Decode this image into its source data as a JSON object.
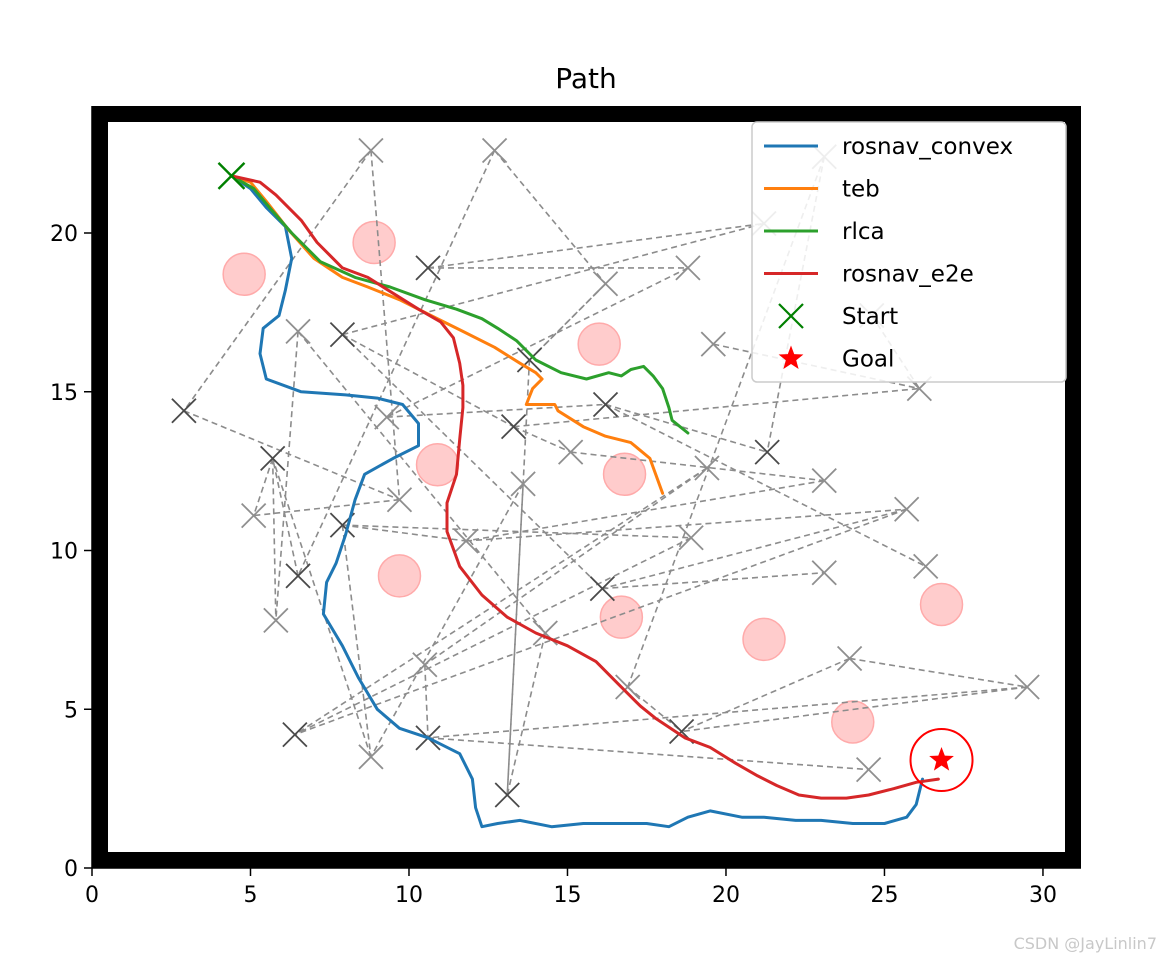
{
  "chart_data": {
    "type": "line",
    "title": "Path",
    "xlabel": "",
    "ylabel": "",
    "xlim": [
      0,
      31.2
    ],
    "ylim": [
      0,
      24
    ],
    "xticks": [
      0,
      5,
      10,
      15,
      20,
      25,
      30
    ],
    "yticks": [
      0,
      5,
      10,
      15,
      20
    ],
    "grid": false,
    "legend_position": "top-right",
    "series": [
      {
        "name": "rosnav_convex",
        "color": "#1f77b4",
        "points": [
          [
            4.4,
            21.8
          ],
          [
            5.0,
            21.4
          ],
          [
            5.5,
            20.8
          ],
          [
            6.1,
            20.2
          ],
          [
            6.3,
            19.2
          ],
          [
            6.1,
            18.2
          ],
          [
            5.9,
            17.4
          ],
          [
            5.4,
            17.0
          ],
          [
            5.3,
            16.2
          ],
          [
            5.5,
            15.4
          ],
          [
            6.6,
            15.0
          ],
          [
            8.0,
            14.9
          ],
          [
            9.0,
            14.8
          ],
          [
            9.8,
            14.6
          ],
          [
            10.3,
            14.0
          ],
          [
            10.3,
            13.3
          ],
          [
            9.5,
            12.9
          ],
          [
            8.6,
            12.4
          ],
          [
            8.3,
            11.6
          ],
          [
            8.0,
            10.5
          ],
          [
            7.7,
            9.6
          ],
          [
            7.4,
            9.0
          ],
          [
            7.3,
            8.0
          ],
          [
            7.9,
            7.0
          ],
          [
            8.4,
            6.0
          ],
          [
            9.0,
            5.0
          ],
          [
            9.7,
            4.4
          ],
          [
            10.6,
            4.1
          ],
          [
            11.6,
            3.6
          ],
          [
            12.0,
            2.8
          ],
          [
            12.1,
            1.9
          ],
          [
            12.3,
            1.3
          ],
          [
            12.8,
            1.4
          ],
          [
            13.5,
            1.5
          ],
          [
            14.5,
            1.3
          ],
          [
            15.5,
            1.4
          ],
          [
            16.5,
            1.4
          ],
          [
            17.5,
            1.4
          ],
          [
            18.2,
            1.3
          ],
          [
            18.8,
            1.6
          ],
          [
            19.5,
            1.8
          ],
          [
            20.5,
            1.6
          ],
          [
            21.2,
            1.6
          ],
          [
            22.2,
            1.5
          ],
          [
            23.0,
            1.5
          ],
          [
            24.0,
            1.4
          ],
          [
            25.0,
            1.4
          ],
          [
            25.7,
            1.6
          ],
          [
            26.0,
            2.0
          ],
          [
            26.2,
            2.8
          ]
        ]
      },
      {
        "name": "teb",
        "color": "#ff7f0e",
        "points": [
          [
            4.4,
            21.8
          ],
          [
            5.0,
            21.6
          ],
          [
            5.5,
            21.0
          ],
          [
            6.2,
            20.1
          ],
          [
            7.0,
            19.2
          ],
          [
            7.9,
            18.6
          ],
          [
            8.7,
            18.3
          ],
          [
            9.7,
            17.9
          ],
          [
            10.7,
            17.4
          ],
          [
            11.7,
            16.9
          ],
          [
            12.7,
            16.4
          ],
          [
            13.5,
            15.9
          ],
          [
            14.0,
            15.6
          ],
          [
            14.2,
            15.4
          ],
          [
            13.9,
            15.1
          ],
          [
            13.7,
            14.6
          ],
          [
            14.3,
            14.6
          ],
          [
            14.6,
            14.6
          ],
          [
            14.7,
            14.4
          ],
          [
            15.5,
            13.9
          ],
          [
            16.2,
            13.6
          ],
          [
            17.0,
            13.4
          ],
          [
            17.6,
            12.9
          ],
          [
            18.0,
            11.8
          ]
        ]
      },
      {
        "name": "rlca",
        "color": "#2ca02c",
        "points": [
          [
            4.4,
            21.8
          ],
          [
            5.1,
            21.4
          ],
          [
            5.6,
            20.8
          ],
          [
            6.3,
            20.0
          ],
          [
            7.2,
            19.1
          ],
          [
            8.3,
            18.6
          ],
          [
            9.4,
            18.3
          ],
          [
            10.5,
            17.9
          ],
          [
            11.5,
            17.6
          ],
          [
            12.3,
            17.3
          ],
          [
            12.8,
            17.0
          ],
          [
            13.4,
            16.6
          ],
          [
            14.0,
            16.0
          ],
          [
            14.8,
            15.6
          ],
          [
            15.6,
            15.4
          ],
          [
            16.3,
            15.6
          ],
          [
            16.7,
            15.5
          ],
          [
            17.0,
            15.7
          ],
          [
            17.4,
            15.8
          ],
          [
            17.7,
            15.5
          ],
          [
            18.0,
            15.1
          ],
          [
            18.2,
            14.5
          ],
          [
            18.3,
            14.1
          ],
          [
            18.8,
            13.7
          ]
        ]
      },
      {
        "name": "rosnav_e2e",
        "color": "#d62728",
        "points": [
          [
            4.4,
            21.8
          ],
          [
            5.3,
            21.6
          ],
          [
            5.8,
            21.2
          ],
          [
            6.6,
            20.4
          ],
          [
            7.1,
            19.7
          ],
          [
            7.9,
            18.9
          ],
          [
            8.7,
            18.6
          ],
          [
            9.5,
            18.1
          ],
          [
            10.3,
            17.6
          ],
          [
            11.0,
            17.2
          ],
          [
            11.4,
            16.7
          ],
          [
            11.6,
            15.9
          ],
          [
            11.7,
            15.2
          ],
          [
            11.7,
            14.5
          ],
          [
            11.6,
            13.5
          ],
          [
            11.5,
            12.4
          ],
          [
            11.2,
            11.5
          ],
          [
            11.2,
            10.6
          ],
          [
            11.6,
            9.5
          ],
          [
            12.3,
            8.6
          ],
          [
            13.1,
            7.9
          ],
          [
            14.0,
            7.4
          ],
          [
            15.0,
            7.0
          ],
          [
            15.9,
            6.5
          ],
          [
            16.6,
            5.8
          ],
          [
            17.3,
            5.1
          ],
          [
            17.8,
            4.7
          ],
          [
            18.7,
            4.1
          ],
          [
            19.5,
            3.8
          ],
          [
            20.3,
            3.3
          ],
          [
            21.0,
            2.9
          ],
          [
            21.6,
            2.6
          ],
          [
            22.3,
            2.3
          ],
          [
            23.0,
            2.2
          ],
          [
            23.8,
            2.2
          ],
          [
            24.5,
            2.3
          ],
          [
            25.3,
            2.5
          ],
          [
            26.0,
            2.7
          ],
          [
            26.7,
            2.8
          ]
        ]
      }
    ],
    "start": {
      "name": "Start",
      "color": "#008000",
      "x": 4.4,
      "y": 21.8
    },
    "goal": {
      "name": "Goal",
      "color": "#ff0000",
      "x": 26.8,
      "y": 3.4
    },
    "obstacles": [
      [
        4.8,
        18.7
      ],
      [
        8.9,
        19.7
      ],
      [
        16.0,
        16.5
      ],
      [
        10.9,
        12.7
      ],
      [
        16.8,
        12.4
      ],
      [
        9.7,
        9.2
      ],
      [
        16.7,
        7.9
      ],
      [
        21.2,
        7.2
      ],
      [
        26.8,
        8.3
      ],
      [
        24.0,
        4.6
      ]
    ],
    "waypoints": [
      {
        "x": 8.8,
        "y": 22.6,
        "shade": "light"
      },
      {
        "x": 12.7,
        "y": 22.6,
        "shade": "light"
      },
      {
        "x": 10.6,
        "y": 18.9,
        "shade": "dark"
      },
      {
        "x": 16.2,
        "y": 18.4,
        "shade": "light"
      },
      {
        "x": 18.8,
        "y": 18.9,
        "shade": "light"
      },
      {
        "x": 21.2,
        "y": 20.3,
        "shade": "light"
      },
      {
        "x": 23.1,
        "y": 22.4,
        "shade": "light"
      },
      {
        "x": 24.6,
        "y": 17.4,
        "shade": "light"
      },
      {
        "x": 6.5,
        "y": 16.9,
        "shade": "light"
      },
      {
        "x": 7.9,
        "y": 16.8,
        "shade": "dark"
      },
      {
        "x": 13.8,
        "y": 16.0,
        "shade": "dark"
      },
      {
        "x": 19.6,
        "y": 16.5,
        "shade": "light"
      },
      {
        "x": 2.9,
        "y": 14.4,
        "shade": "dark"
      },
      {
        "x": 9.3,
        "y": 14.2,
        "shade": "light"
      },
      {
        "x": 13.3,
        "y": 13.9,
        "shade": "dark"
      },
      {
        "x": 16.2,
        "y": 14.6,
        "shade": "dark"
      },
      {
        "x": 26.1,
        "y": 15.1,
        "shade": "light"
      },
      {
        "x": 15.1,
        "y": 13.1,
        "shade": "light"
      },
      {
        "x": 21.3,
        "y": 13.1,
        "shade": "dark"
      },
      {
        "x": 5.7,
        "y": 12.9,
        "shade": "dark"
      },
      {
        "x": 9.7,
        "y": 11.6,
        "shade": "light"
      },
      {
        "x": 13.6,
        "y": 12.1,
        "shade": "light"
      },
      {
        "x": 19.4,
        "y": 12.6,
        "shade": "light"
      },
      {
        "x": 23.1,
        "y": 12.2,
        "shade": "light"
      },
      {
        "x": 5.1,
        "y": 11.1,
        "shade": "light"
      },
      {
        "x": 7.9,
        "y": 10.8,
        "shade": "dark"
      },
      {
        "x": 11.8,
        "y": 10.3,
        "shade": "light"
      },
      {
        "x": 18.9,
        "y": 10.4,
        "shade": "light"
      },
      {
        "x": 25.7,
        "y": 11.3,
        "shade": "light"
      },
      {
        "x": 26.3,
        "y": 9.5,
        "shade": "light"
      },
      {
        "x": 6.5,
        "y": 9.2,
        "shade": "dark"
      },
      {
        "x": 16.1,
        "y": 8.8,
        "shade": "dark"
      },
      {
        "x": 23.1,
        "y": 9.3,
        "shade": "light"
      },
      {
        "x": 5.8,
        "y": 7.8,
        "shade": "light"
      },
      {
        "x": 14.3,
        "y": 7.4,
        "shade": "light"
      },
      {
        "x": 10.5,
        "y": 6.4,
        "shade": "light"
      },
      {
        "x": 16.9,
        "y": 5.7,
        "shade": "light"
      },
      {
        "x": 23.9,
        "y": 6.6,
        "shade": "light"
      },
      {
        "x": 29.5,
        "y": 5.7,
        "shade": "light"
      },
      {
        "x": 6.4,
        "y": 4.2,
        "shade": "dark"
      },
      {
        "x": 10.6,
        "y": 4.1,
        "shade": "dark"
      },
      {
        "x": 18.6,
        "y": 4.3,
        "shade": "dark"
      },
      {
        "x": 8.8,
        "y": 3.5,
        "shade": "light"
      },
      {
        "x": 24.5,
        "y": 3.1,
        "shade": "light"
      },
      {
        "x": 13.1,
        "y": 2.3,
        "shade": "dark"
      }
    ],
    "waypoint_links": [
      [
        0,
        12
      ],
      [
        0,
        20
      ],
      [
        1,
        3
      ],
      [
        1,
        30
      ],
      [
        2,
        5
      ],
      [
        2,
        4
      ],
      [
        3,
        10
      ],
      [
        4,
        13
      ],
      [
        5,
        9
      ],
      [
        6,
        18
      ],
      [
        6,
        36
      ],
      [
        7,
        16
      ],
      [
        8,
        33
      ],
      [
        8,
        34
      ],
      [
        9,
        14
      ],
      [
        9,
        31
      ],
      [
        11,
        16
      ],
      [
        12,
        20
      ],
      [
        13,
        15
      ],
      [
        14,
        16
      ],
      [
        14,
        17
      ],
      [
        15,
        18
      ],
      [
        15,
        29
      ],
      [
        19,
        24
      ],
      [
        19,
        33
      ],
      [
        20,
        24
      ],
      [
        21,
        42
      ],
      [
        21,
        44
      ],
      [
        22,
        35
      ],
      [
        22,
        39
      ],
      [
        23,
        26
      ],
      [
        25,
        26
      ],
      [
        25,
        27
      ],
      [
        25,
        42
      ],
      [
        26,
        28
      ],
      [
        27,
        39
      ],
      [
        28,
        31
      ],
      [
        31,
        32
      ],
      [
        34,
        44
      ],
      [
        35,
        40
      ],
      [
        36,
        41
      ],
      [
        37,
        41
      ],
      [
        38,
        41
      ],
      [
        38,
        40
      ],
      [
        40,
        43
      ],
      [
        42,
        19
      ],
      [
        44,
        10
      ],
      [
        17,
        23
      ],
      [
        10,
        3
      ],
      [
        30,
        19
      ],
      [
        37,
        38
      ],
      [
        28,
        39
      ]
    ]
  }
}
